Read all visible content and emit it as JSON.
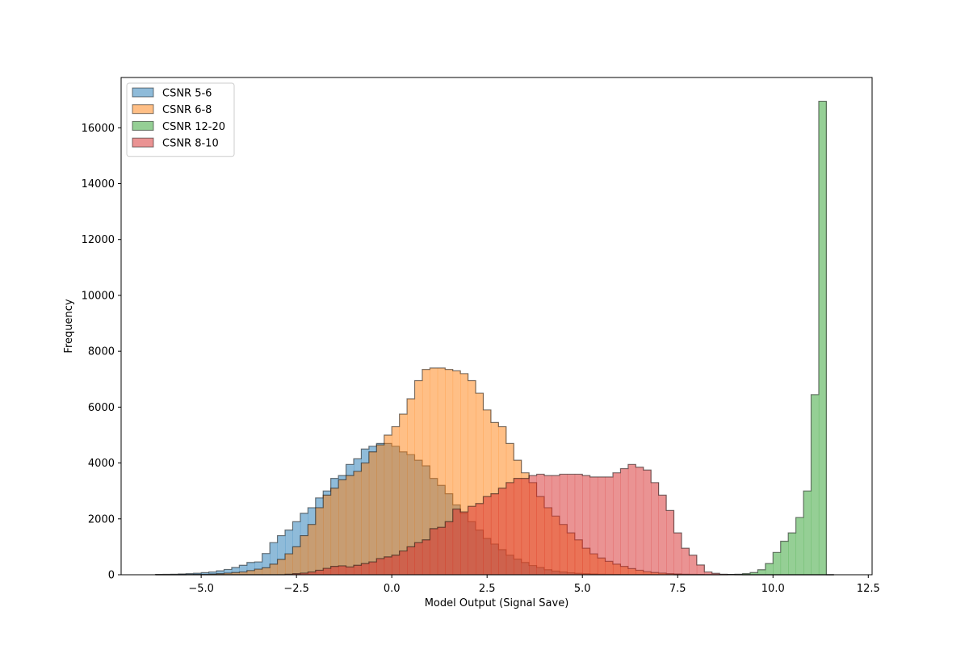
{
  "chart_data": {
    "type": "histogram",
    "title": "",
    "xlabel": "Model Output (Signal Save)",
    "ylabel": "Frequency",
    "xlim": [
      -7.1,
      12.6
    ],
    "ylim": [
      0,
      17800
    ],
    "xticks": [
      -5.0,
      -2.5,
      0.0,
      2.5,
      5.0,
      7.5,
      10.0,
      12.5
    ],
    "xtick_labels": [
      "−5.0",
      "−2.5",
      "0.0",
      "2.5",
      "5.0",
      "7.5",
      "10.0",
      "12.5"
    ],
    "yticks": [
      0,
      2000,
      4000,
      6000,
      8000,
      10000,
      12000,
      14000,
      16000
    ],
    "ytick_labels": [
      "0",
      "2000",
      "4000",
      "6000",
      "8000",
      "10000",
      "12000",
      "14000",
      "16000"
    ],
    "grid": false,
    "legend_position": "upper-left",
    "series": [
      {
        "name": "CSNR 5-6",
        "color": "#1f77b4",
        "bin_start": -6.2,
        "bin_width": 0.2,
        "values": [
          10,
          15,
          20,
          30,
          40,
          55,
          75,
          100,
          140,
          190,
          260,
          340,
          440,
          460,
          760,
          1150,
          1400,
          1600,
          1900,
          2200,
          2400,
          2750,
          3000,
          3450,
          3550,
          3950,
          4150,
          4500,
          4600,
          4700,
          4700,
          4600,
          4400,
          4300,
          4100,
          3900,
          3450,
          3200,
          2900,
          2500,
          2200,
          1900,
          1600,
          1300,
          1100,
          900,
          700,
          560,
          440,
          330,
          260,
          180,
          130,
          100,
          70,
          50,
          40,
          30,
          20,
          15,
          10,
          8,
          6,
          5,
          3,
          2,
          2,
          2,
          1,
          1,
          1,
          1,
          0,
          0,
          0,
          0,
          0,
          0,
          0,
          0,
          0,
          0,
          0,
          0,
          0,
          0,
          0,
          0,
          0
        ]
      },
      {
        "name": "CSNR 6-8",
        "color": "#ff7f0e",
        "bin_start": -6.2,
        "bin_width": 0.2,
        "values": [
          0,
          0,
          0,
          0,
          5,
          10,
          15,
          25,
          40,
          60,
          80,
          100,
          150,
          200,
          250,
          380,
          550,
          750,
          1000,
          1400,
          1800,
          2400,
          2850,
          3100,
          3400,
          3550,
          3700,
          4000,
          4400,
          4650,
          5000,
          5300,
          5750,
          6300,
          6950,
          7350,
          7400,
          7400,
          7350,
          7300,
          7200,
          6950,
          6500,
          5900,
          5450,
          5300,
          4700,
          4100,
          3650,
          3300,
          2800,
          2400,
          2100,
          1800,
          1500,
          1250,
          950,
          750,
          600,
          480,
          380,
          300,
          220,
          160,
          110,
          80,
          60,
          40,
          30,
          20,
          15,
          10,
          5,
          5,
          3,
          2,
          1,
          1,
          0,
          0,
          0,
          0,
          0,
          0,
          0,
          0,
          0,
          0,
          0
        ]
      },
      {
        "name": "CSNR 12-20",
        "color": "#2ca02c",
        "bin_start": -6.2,
        "bin_width": 0.2,
        "values": [
          0,
          0,
          0,
          0,
          0,
          0,
          0,
          0,
          0,
          0,
          0,
          0,
          0,
          0,
          0,
          0,
          0,
          0,
          0,
          0,
          0,
          0,
          0,
          0,
          0,
          0,
          0,
          0,
          0,
          0,
          0,
          0,
          0,
          0,
          0,
          0,
          0,
          0,
          0,
          0,
          0,
          0,
          0,
          0,
          0,
          0,
          0,
          0,
          0,
          0,
          0,
          0,
          0,
          0,
          0,
          0,
          0,
          0,
          0,
          0,
          0,
          0,
          0,
          0,
          0,
          0,
          0,
          0,
          0,
          0,
          0,
          0,
          0,
          0,
          0,
          10,
          20,
          40,
          80,
          180,
          400,
          800,
          1200,
          1500,
          2050,
          3000,
          6450,
          16950,
          0
        ]
      },
      {
        "name": "CSNR 8-10",
        "color": "#d62728",
        "bin_start": -6.2,
        "bin_width": 0.2,
        "values": [
          0,
          0,
          0,
          0,
          0,
          0,
          0,
          0,
          0,
          0,
          0,
          0,
          0,
          0,
          0,
          0,
          0,
          20,
          40,
          60,
          100,
          160,
          230,
          300,
          320,
          280,
          340,
          400,
          460,
          580,
          640,
          700,
          850,
          1000,
          1150,
          1250,
          1650,
          1700,
          1900,
          2350,
          2250,
          2450,
          2550,
          2800,
          2900,
          3100,
          3300,
          3450,
          3450,
          3550,
          3600,
          3550,
          3550,
          3600,
          3600,
          3600,
          3550,
          3500,
          3500,
          3500,
          3650,
          3800,
          3950,
          3850,
          3750,
          3300,
          2850,
          2300,
          1500,
          950,
          700,
          350,
          100,
          50,
          20,
          10,
          5,
          0,
          0,
          0,
          0,
          0,
          0,
          0,
          0,
          0,
          0,
          0,
          0
        ]
      }
    ]
  }
}
